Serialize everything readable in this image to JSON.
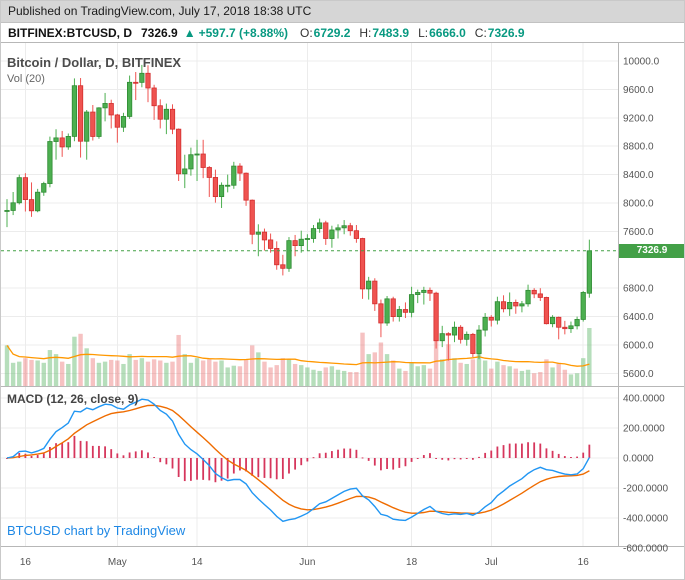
{
  "published_bar": {
    "text": "Published on TradingView.com, July 17, 2018 18:38 UTC"
  },
  "symbol_bar": {
    "symbol": "BITFINEX:BTCUSD, D",
    "last": "7326.9",
    "arrow": "▲",
    "change": "+597.7 (+8.88%)",
    "ohlc": [
      {
        "label": "O:",
        "value": "6729.2"
      },
      {
        "label": "H:",
        "value": "7483.9"
      },
      {
        "label": "L:",
        "value": "6666.0"
      },
      {
        "label": "C:",
        "value": "7326.9"
      }
    ]
  },
  "main_pane": {
    "title": "Bitcoin / Dollar, D, BITFINEX",
    "volume_label": "Vol (20)",
    "last_price_badge": "7326.9",
    "last_price_value": 7326.9
  },
  "macd_pane": {
    "title": "MACD (12, 26, close, 9)"
  },
  "attribution": {
    "text": "BTCUSD chart by TradingView"
  },
  "colors": {
    "up": "#4caf50",
    "up_border": "#2f8a33",
    "down": "#ef5350",
    "down_border": "#d32f2f",
    "vol_up": "rgba(110,190,120,0.5)",
    "vol_down": "rgba(235,120,120,0.45)",
    "vol_ma": "#ff9800",
    "macd_line": "#2196f3",
    "signal_line": "#ef6c00",
    "macd_hist": "#d6365c",
    "last_price": "#43a047",
    "grid": "#ececec",
    "border": "#b7b7b7",
    "axis_text": "#555555",
    "accent_green": "#089981",
    "link_blue": "#1e88e5"
  },
  "chart_data": {
    "type": "candlestick",
    "title": "Bitcoin / Dollar, D, BITFINEX",
    "price_axis_ticks": [
      "10000.0",
      "9600.0",
      "9200.0",
      "8800.0",
      "8400.0",
      "8000.0",
      "7600.0",
      "6800.0",
      "6400.0",
      "6000.0",
      "5600.0"
    ],
    "macd_axis_ticks": [
      "400.0000",
      "200.0000",
      "0.0000",
      "-200.0000",
      "-400.0000",
      "-600.0000"
    ],
    "time_ticks": [
      {
        "label": "16",
        "index": 3
      },
      {
        "label": "May",
        "index": 18
      },
      {
        "label": "14",
        "index": 31
      },
      {
        "label": "Jun",
        "index": 49
      },
      {
        "label": "18",
        "index": 66
      },
      {
        "label": "Jul",
        "index": 79
      },
      {
        "label": "16",
        "index": 94
      }
    ],
    "candle_format": [
      "open",
      "high",
      "low",
      "close",
      "relative_volume"
    ],
    "candles": [
      [
        7890,
        8055,
        7660,
        7895,
        70
      ],
      [
        7895,
        8155,
        7830,
        8003,
        40
      ],
      [
        8003,
        8399,
        7980,
        8357,
        42
      ],
      [
        8357,
        8420,
        7880,
        8048,
        48
      ],
      [
        8048,
        8290,
        7805,
        7890,
        45
      ],
      [
        7890,
        8199,
        7870,
        8152,
        44
      ],
      [
        8152,
        8299,
        8101,
        8274,
        40
      ],
      [
        8274,
        8935,
        8221,
        8866,
        62
      ],
      [
        8866,
        9039,
        8610,
        8917,
        55
      ],
      [
        8917,
        9015,
        8650,
        8790,
        42
      ],
      [
        8790,
        8979,
        8750,
        8938,
        38
      ],
      [
        8938,
        9755,
        8870,
        9652,
        85
      ],
      [
        9652,
        9760,
        8640,
        8870,
        90
      ],
      [
        8870,
        9310,
        8610,
        9281,
        65
      ],
      [
        9281,
        9380,
        8880,
        8937,
        48
      ],
      [
        8937,
        9349,
        8905,
        9340,
        40
      ],
      [
        9340,
        9550,
        9150,
        9402,
        42
      ],
      [
        9402,
        9455,
        9050,
        9240,
        45
      ],
      [
        9240,
        9255,
        8850,
        9067,
        44
      ],
      [
        9067,
        9270,
        9001,
        9219,
        38
      ],
      [
        9219,
        9795,
        9185,
        9700,
        55
      ],
      [
        9700,
        9845,
        9450,
        9699,
        45
      ],
      [
        9699,
        9945,
        9630,
        9827,
        48
      ],
      [
        9827,
        9940,
        9420,
        9620,
        42
      ],
      [
        9620,
        9665,
        9170,
        9370,
        46
      ],
      [
        9370,
        9460,
        9050,
        9180,
        44
      ],
      [
        9180,
        9400,
        8970,
        9320,
        40
      ],
      [
        9320,
        9390,
        8970,
        9040,
        42
      ],
      [
        9040,
        9050,
        8310,
        8411,
        88
      ],
      [
        8411,
        8680,
        8210,
        8480,
        55
      ],
      [
        8480,
        8780,
        8385,
        8680,
        40
      ],
      [
        8680,
        8890,
        8310,
        8690,
        48
      ],
      [
        8690,
        8890,
        8350,
        8500,
        44
      ],
      [
        8500,
        8520,
        8085,
        8360,
        46
      ],
      [
        8360,
        8470,
        8005,
        8090,
        42
      ],
      [
        8090,
        8290,
        7930,
        8250,
        44
      ],
      [
        8250,
        8400,
        8150,
        8250,
        32
      ],
      [
        8250,
        8580,
        8200,
        8520,
        35
      ],
      [
        8520,
        8560,
        8310,
        8420,
        34
      ],
      [
        8420,
        8430,
        7960,
        8040,
        45
      ],
      [
        8040,
        8050,
        7420,
        7560,
        70
      ],
      [
        7560,
        7700,
        7250,
        7590,
        58
      ],
      [
        7590,
        7640,
        7330,
        7480,
        42
      ],
      [
        7480,
        7570,
        7300,
        7360,
        32
      ],
      [
        7360,
        7460,
        7060,
        7130,
        36
      ],
      [
        7130,
        7270,
        6980,
        7080,
        48
      ],
      [
        7080,
        7520,
        7030,
        7470,
        46
      ],
      [
        7470,
        7550,
        7250,
        7400,
        38
      ],
      [
        7400,
        7610,
        7300,
        7490,
        36
      ],
      [
        7490,
        7560,
        7330,
        7500,
        32
      ],
      [
        7500,
        7690,
        7440,
        7640,
        28
      ],
      [
        7640,
        7780,
        7580,
        7720,
        26
      ],
      [
        7720,
        7750,
        7410,
        7500,
        32
      ],
      [
        7500,
        7680,
        7370,
        7620,
        34
      ],
      [
        7620,
        7700,
        7500,
        7650,
        28
      ],
      [
        7650,
        7760,
        7560,
        7680,
        26
      ],
      [
        7680,
        7720,
        7540,
        7610,
        24
      ],
      [
        7610,
        7690,
        7440,
        7500,
        24
      ],
      [
        7500,
        7510,
        6650,
        6790,
        92
      ],
      [
        6790,
        6960,
        6640,
        6900,
        55
      ],
      [
        6900,
        6940,
        6480,
        6580,
        58
      ],
      [
        6580,
        6640,
        6110,
        6310,
        75
      ],
      [
        6310,
        6690,
        6270,
        6650,
        55
      ],
      [
        6650,
        6680,
        6330,
        6400,
        44
      ],
      [
        6400,
        6550,
        6330,
        6500,
        30
      ],
      [
        6500,
        6600,
        6380,
        6460,
        26
      ],
      [
        6460,
        6820,
        6390,
        6710,
        40
      ],
      [
        6710,
        6780,
        6590,
        6740,
        34
      ],
      [
        6740,
        6820,
        6570,
        6770,
        36
      ],
      [
        6770,
        6810,
        6620,
        6730,
        30
      ],
      [
        6730,
        6750,
        5950,
        6060,
        85
      ],
      [
        6060,
        6270,
        5970,
        6160,
        46
      ],
      [
        6160,
        6180,
        5780,
        6140,
        72
      ],
      [
        6140,
        6330,
        6040,
        6250,
        48
      ],
      [
        6250,
        6280,
        6020,
        6080,
        40
      ],
      [
        6080,
        6190,
        5990,
        6150,
        38
      ],
      [
        6150,
        6170,
        5830,
        5880,
        46
      ],
      [
        5880,
        6280,
        5800,
        6210,
        56
      ],
      [
        6210,
        6450,
        6120,
        6390,
        44
      ],
      [
        6390,
        6420,
        6260,
        6350,
        30
      ],
      [
        6350,
        6680,
        6290,
        6610,
        42
      ],
      [
        6610,
        6700,
        6460,
        6510,
        36
      ],
      [
        6510,
        6740,
        6410,
        6600,
        34
      ],
      [
        6600,
        6640,
        6440,
        6550,
        30
      ],
      [
        6550,
        6620,
        6460,
        6580,
        26
      ],
      [
        6580,
        6850,
        6540,
        6770,
        28
      ],
      [
        6770,
        6800,
        6660,
        6720,
        22
      ],
      [
        6720,
        6800,
        6620,
        6670,
        24
      ],
      [
        6670,
        6680,
        6290,
        6300,
        46
      ],
      [
        6300,
        6420,
        6250,
        6390,
        32
      ],
      [
        6390,
        6400,
        6080,
        6250,
        40
      ],
      [
        6250,
        6340,
        6150,
        6230,
        28
      ],
      [
        6230,
        6330,
        6170,
        6270,
        20
      ],
      [
        6270,
        6400,
        6220,
        6360,
        22
      ],
      [
        6360,
        6760,
        6330,
        6740,
        48
      ],
      [
        6729.2,
        7483.9,
        6666.0,
        7326.9,
        100
      ]
    ],
    "indicators": {
      "volume_ma_period": 20,
      "macd_params": [
        12,
        26,
        9
      ]
    },
    "last_close": 7326.9
  }
}
